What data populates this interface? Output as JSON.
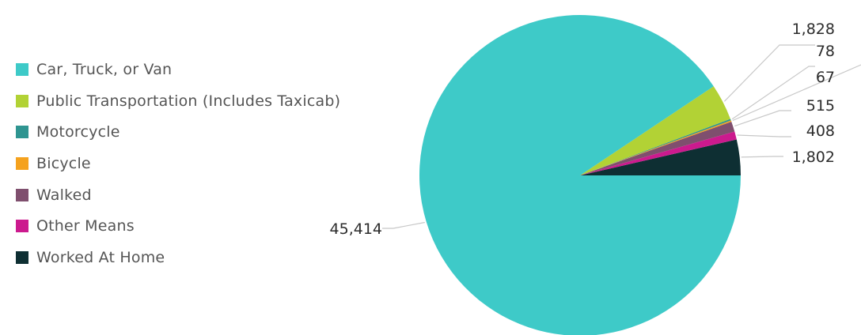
{
  "chart_data": {
    "type": "pie",
    "categories": [
      "Car, Truck, or Van",
      "Public Transportation (Includes Taxicab)",
      "Motorcycle",
      "Bicycle",
      "Walked",
      "Other Means",
      "Worked At Home"
    ],
    "values": [
      45414,
      1828,
      78,
      67,
      515,
      408,
      1802
    ],
    "value_labels": [
      "45,414",
      "1,828",
      "78",
      "67",
      "515",
      "408",
      "1,802"
    ],
    "colors": [
      "#3ecac8",
      "#b2d235",
      "#2f9591",
      "#f5a21e",
      "#7f4f6e",
      "#cc1a8e",
      "#0e2f33"
    ],
    "legend_position": "left",
    "title": ""
  }
}
